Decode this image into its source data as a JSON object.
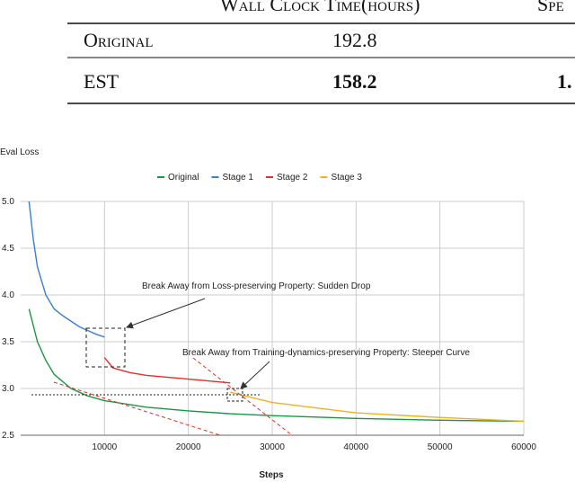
{
  "table": {
    "header": [
      "Wall Clock Time(hours)",
      "Spe"
    ],
    "rows": [
      [
        "Original",
        "192.8"
      ],
      [
        "EST",
        "158.2",
        "1."
      ]
    ]
  },
  "chart_data": {
    "type": "line",
    "title": "Eval Loss",
    "x_label": "Steps",
    "series": [
      {
        "name": "Original",
        "color": "#1a9641",
        "x": [
          1000,
          2000,
          3000,
          4000,
          6000,
          8000,
          10000,
          15000,
          20000,
          25000,
          30000,
          40000,
          50000,
          60000
        ],
        "values": [
          3.85,
          3.5,
          3.3,
          3.15,
          3.0,
          2.92,
          2.87,
          2.8,
          2.76,
          2.73,
          2.71,
          2.68,
          2.66,
          2.65
        ]
      },
      {
        "name": "Stage 1",
        "color": "#3b7dd8",
        "x": [
          1000,
          1500,
          2000,
          3000,
          4000,
          5000,
          6000,
          7000,
          8000,
          9000,
          10000
        ],
        "values": [
          5.0,
          4.6,
          4.3,
          4.0,
          3.85,
          3.78,
          3.72,
          3.66,
          3.62,
          3.58,
          3.55
        ]
      },
      {
        "name": "Stage 2",
        "color": "#e0302a",
        "x": [
          10000,
          11000,
          13000,
          15000,
          20000,
          25000
        ],
        "values": [
          3.33,
          3.22,
          3.17,
          3.14,
          3.1,
          3.06
        ]
      },
      {
        "name": "Stage 3",
        "color": "#f2b01e",
        "x": [
          25000,
          30000,
          40000,
          50000,
          60000
        ],
        "values": [
          2.96,
          2.85,
          2.74,
          2.69,
          2.65
        ]
      }
    ],
    "xlim": [
      0,
      60000
    ],
    "xticks": [
      10000,
      20000,
      30000,
      40000,
      50000,
      60000
    ],
    "ylim": [
      2.5,
      5.0
    ],
    "yticks": [
      2.5,
      {
        "value": 3,
        "label": "3.0"
      },
      3.5,
      {
        "value": 4,
        "label": "4.0"
      },
      4.5,
      {
        "value": 5,
        "label": "5.0"
      }
    ],
    "grid": true,
    "annotations": [
      "Break Away from Loss-preserving Property: Sudden Drop",
      "Break Away from Training-dynamics-preserving Property: Steeper Curve"
    ]
  }
}
